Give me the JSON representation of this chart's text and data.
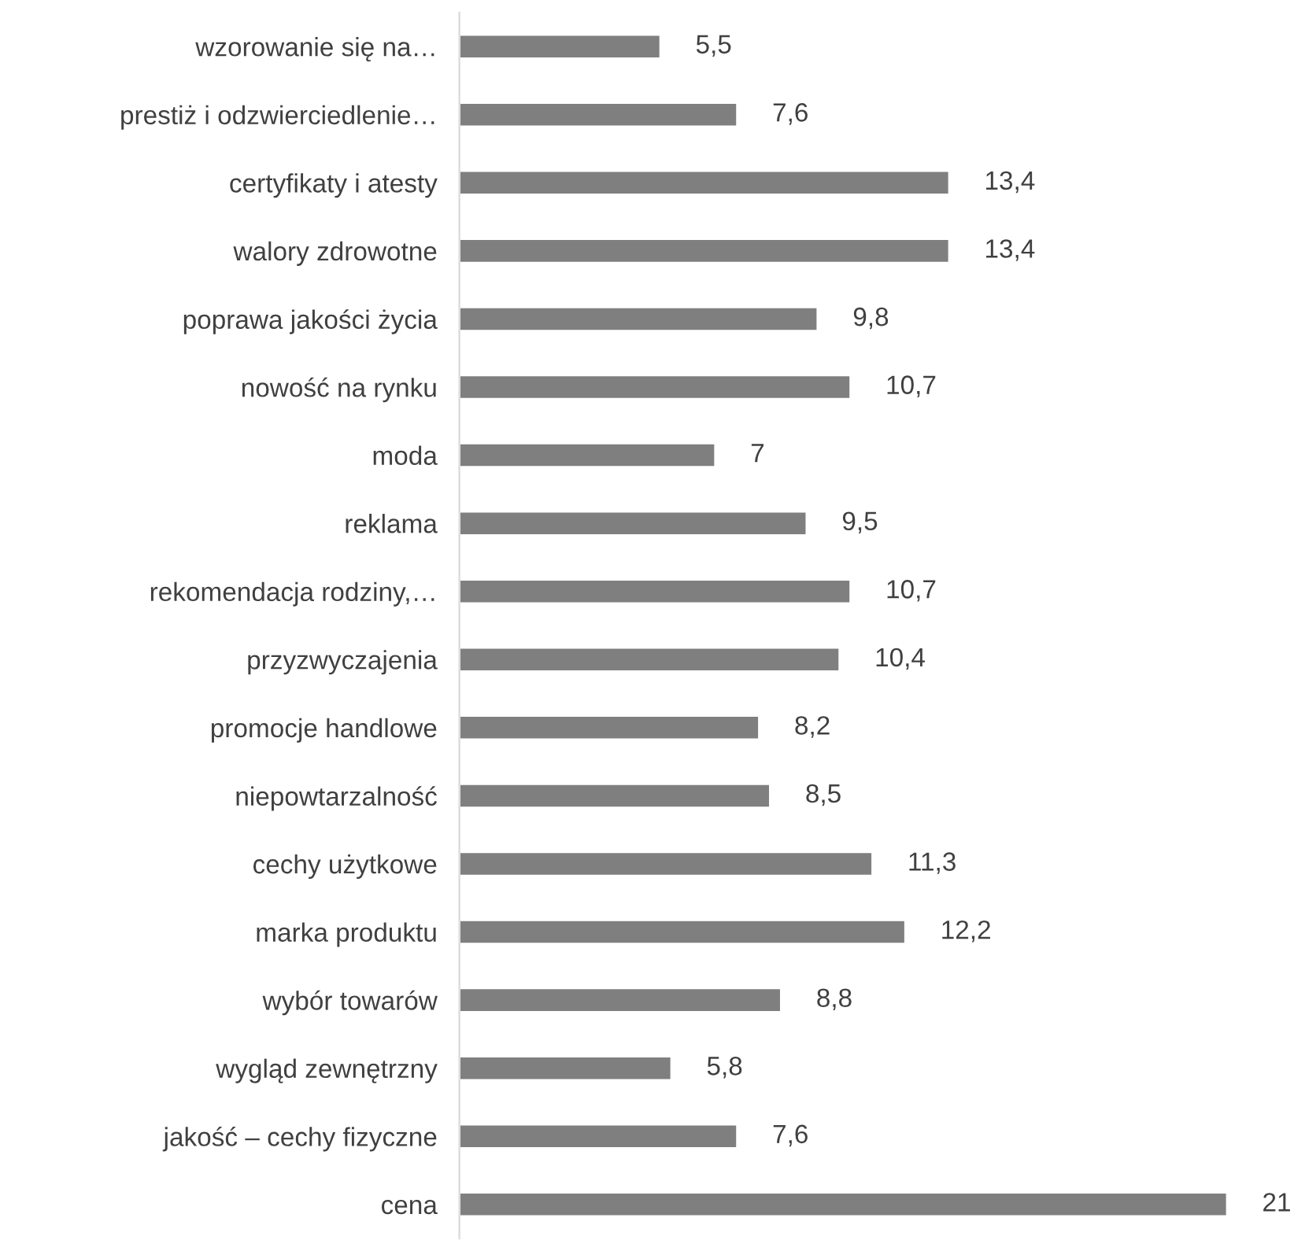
{
  "chart_data": {
    "type": "bar",
    "orientation": "horizontal",
    "color": "#7f7f7f",
    "value_labels": [
      "5,5",
      "7,6",
      "13,4",
      "13,4",
      "9,8",
      "10,7",
      "7",
      "9,5",
      "10,7",
      "10,4",
      "8,2",
      "8,5",
      "11,3",
      "12,2",
      "8,8",
      "5,8",
      "7,6",
      "21"
    ],
    "categories": [
      "wzorowanie się na…",
      "prestiż i odzwierciedlenie…",
      "certyfikaty i atesty",
      "walory zdrowotne",
      "poprawa jakości życia",
      "nowość na rynku",
      "moda",
      "reklama",
      "rekomendacja rodziny,…",
      "przyzwyczajenia",
      "promocje handlowe",
      "niepowtarzalność",
      "cechy użytkowe",
      "marka produktu",
      "wybór towarów",
      "wygląd zewnętrzny",
      "jakość – cechy fizyczne",
      "cena"
    ],
    "values": [
      5.5,
      7.6,
      13.4,
      13.4,
      9.8,
      10.7,
      7,
      9.5,
      10.7,
      10.4,
      8.2,
      8.5,
      11.3,
      12.2,
      8.8,
      5.8,
      7.6,
      21
    ],
    "grid": false,
    "legend": false,
    "tick_labels": "y"
  }
}
